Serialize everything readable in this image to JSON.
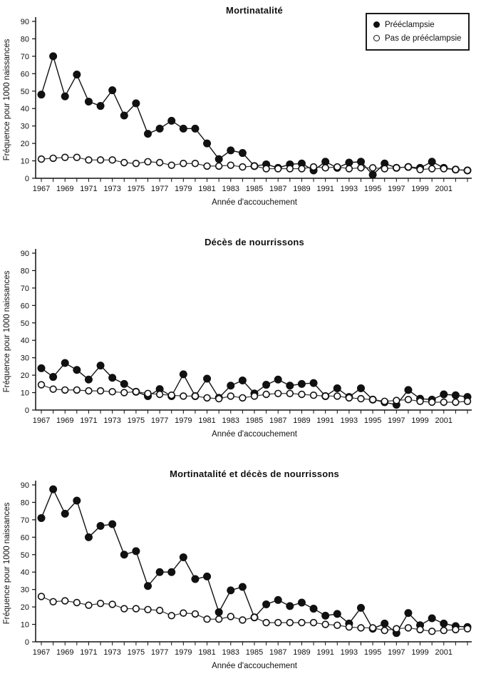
{
  "figure": {
    "foreground_color": "#111111",
    "background_color": "#ffffff",
    "legend": {
      "position": "top-right-of-first-chart",
      "items": [
        {
          "label": "Prééclampsie",
          "marker": "filled-circle"
        },
        {
          "label": "Pas de prééclampsie",
          "marker": "open-circle"
        }
      ]
    }
  },
  "chart_data": [
    {
      "type": "line",
      "title": "Mortinatalité",
      "xlabel": "Année d'accouchement",
      "ylabel": "Fréquence pour 1000 naissances",
      "ylim": [
        0,
        90
      ],
      "yticks": [
        0,
        10,
        20,
        30,
        40,
        50,
        60,
        70,
        80,
        90
      ],
      "grid": false,
      "legend_position": "top-right",
      "x": [
        1967,
        1968,
        1969,
        1970,
        1971,
        1972,
        1973,
        1974,
        1975,
        1976,
        1977,
        1978,
        1979,
        1980,
        1981,
        1982,
        1983,
        1984,
        1985,
        1986,
        1987,
        1988,
        1989,
        1990,
        1991,
        1992,
        1993,
        1994,
        1995,
        1996,
        1997,
        1998,
        1999,
        2000,
        2001,
        2002,
        2003
      ],
      "xtick_labels": [
        "1967",
        "1969",
        "1971",
        "1973",
        "1975",
        "1977",
        "1979",
        "1981",
        "1983",
        "1985",
        "1987",
        "1989",
        "1991",
        "1993",
        "1995",
        "1997",
        "1999",
        "2001"
      ],
      "series": [
        {
          "name": "Prééclampsie",
          "marker": "filled-circle",
          "values": [
            48,
            70,
            47,
            59.5,
            44,
            41.5,
            50.5,
            36,
            43,
            25.5,
            28.5,
            33,
            28.5,
            28.5,
            20,
            11,
            16,
            14.5,
            7,
            8,
            6,
            8,
            8.5,
            4.5,
            9.5,
            6,
            9,
            9.5,
            2,
            8.5,
            6,
            6.5,
            6,
            9.5,
            6,
            5,
            4.5
          ]
        },
        {
          "name": "Pas de prééclampsie",
          "marker": "open-circle",
          "values": [
            11,
            11.5,
            12,
            12,
            10.5,
            10.5,
            10.5,
            9,
            8.5,
            9.5,
            9,
            7.5,
            8.5,
            8.5,
            7,
            7,
            7.5,
            6.5,
            7,
            5.5,
            5.5,
            5.5,
            5.5,
            6.5,
            6,
            6.5,
            5.5,
            6,
            6,
            5.5,
            6,
            6.5,
            5,
            5.5,
            5.5,
            5,
            4.5
          ]
        }
      ]
    },
    {
      "type": "line",
      "title": "Décès de nourrissons",
      "xlabel": "Année d'accouchement",
      "ylabel": "Fréquence pour 1000 naissances",
      "ylim": [
        0,
        90
      ],
      "yticks": [
        0,
        10,
        20,
        30,
        40,
        50,
        60,
        70,
        80,
        90
      ],
      "grid": false,
      "legend_position": "none",
      "x": [
        1967,
        1968,
        1969,
        1970,
        1971,
        1972,
        1973,
        1974,
        1975,
        1976,
        1977,
        1978,
        1979,
        1980,
        1981,
        1982,
        1983,
        1984,
        1985,
        1986,
        1987,
        1988,
        1989,
        1990,
        1991,
        1992,
        1993,
        1994,
        1995,
        1996,
        1997,
        1998,
        1999,
        2000,
        2001,
        2002,
        2003
      ],
      "xtick_labels": [
        "1967",
        "1969",
        "1971",
        "1973",
        "1975",
        "1977",
        "1979",
        "1981",
        "1983",
        "1985",
        "1987",
        "1989",
        "1991",
        "1993",
        "1995",
        "1997",
        "1999",
        "2001"
      ],
      "series": [
        {
          "name": "Prééclampsie",
          "marker": "filled-circle",
          "values": [
            24,
            19,
            27,
            23,
            17.5,
            25.5,
            18.5,
            15,
            10.5,
            8,
            12,
            8,
            20.5,
            8,
            18,
            7,
            14,
            17,
            9.5,
            14.5,
            17.5,
            14,
            15,
            15.5,
            8,
            12.5,
            7.5,
            12.5,
            6,
            4.5,
            3,
            11.5,
            6.5,
            6,
            9,
            8.5,
            7.5
          ]
        },
        {
          "name": "Pas de prééclampsie",
          "marker": "open-circle",
          "values": [
            14.5,
            12,
            11.5,
            11.5,
            11,
            11,
            10.5,
            10,
            10.5,
            9.5,
            9,
            8.5,
            8,
            8,
            7,
            6.5,
            8,
            7,
            8,
            9,
            9.5,
            9.5,
            9,
            8.5,
            8,
            8,
            7,
            6.5,
            6,
            5,
            5.5,
            6,
            5,
            4.5,
            4.5,
            4.5,
            5
          ]
        }
      ]
    },
    {
      "type": "line",
      "title": "Mortinatalité et décès de nourrissons",
      "xlabel": "Année d'accouchement",
      "ylabel": "Fréquence pour 1000 naissances",
      "ylim": [
        0,
        90
      ],
      "yticks": [
        0,
        10,
        20,
        30,
        40,
        50,
        60,
        70,
        80,
        90
      ],
      "grid": false,
      "legend_position": "none",
      "x": [
        1967,
        1968,
        1969,
        1970,
        1971,
        1972,
        1973,
        1974,
        1975,
        1976,
        1977,
        1978,
        1979,
        1980,
        1981,
        1982,
        1983,
        1984,
        1985,
        1986,
        1987,
        1988,
        1989,
        1990,
        1991,
        1992,
        1993,
        1994,
        1995,
        1996,
        1997,
        1998,
        1999,
        2000,
        2001,
        2002,
        2003
      ],
      "xtick_labels": [
        "1967",
        "1969",
        "1971",
        "1973",
        "1975",
        "1977",
        "1979",
        "1981",
        "1983",
        "1985",
        "1987",
        "1989",
        "1991",
        "1993",
        "1995",
        "1997",
        "1999",
        "2001"
      ],
      "series": [
        {
          "name": "Prééclampsie",
          "marker": "filled-circle",
          "values": [
            71,
            87.5,
            73.5,
            81,
            60,
            66.5,
            67.5,
            50,
            52,
            32,
            40,
            40,
            48.5,
            36,
            37.5,
            17,
            29.5,
            31.5,
            14,
            21.5,
            24,
            20.5,
            22.5,
            19,
            15,
            16,
            10.5,
            19.5,
            7.5,
            10.5,
            5,
            16.5,
            9.5,
            13.5,
            10.5,
            9,
            8.5
          ]
        },
        {
          "name": "Pas de prééclampsie",
          "marker": "open-circle",
          "values": [
            26,
            23,
            23.5,
            22.5,
            21,
            22,
            21.5,
            19,
            19,
            18.5,
            18,
            15,
            16.5,
            16,
            13,
            13,
            14.5,
            12.5,
            14,
            11,
            11,
            11,
            11,
            11,
            10,
            9.5,
            8.5,
            8,
            8,
            6.5,
            7.5,
            8,
            7,
            6,
            6.5,
            7,
            7.5
          ]
        }
      ]
    }
  ]
}
